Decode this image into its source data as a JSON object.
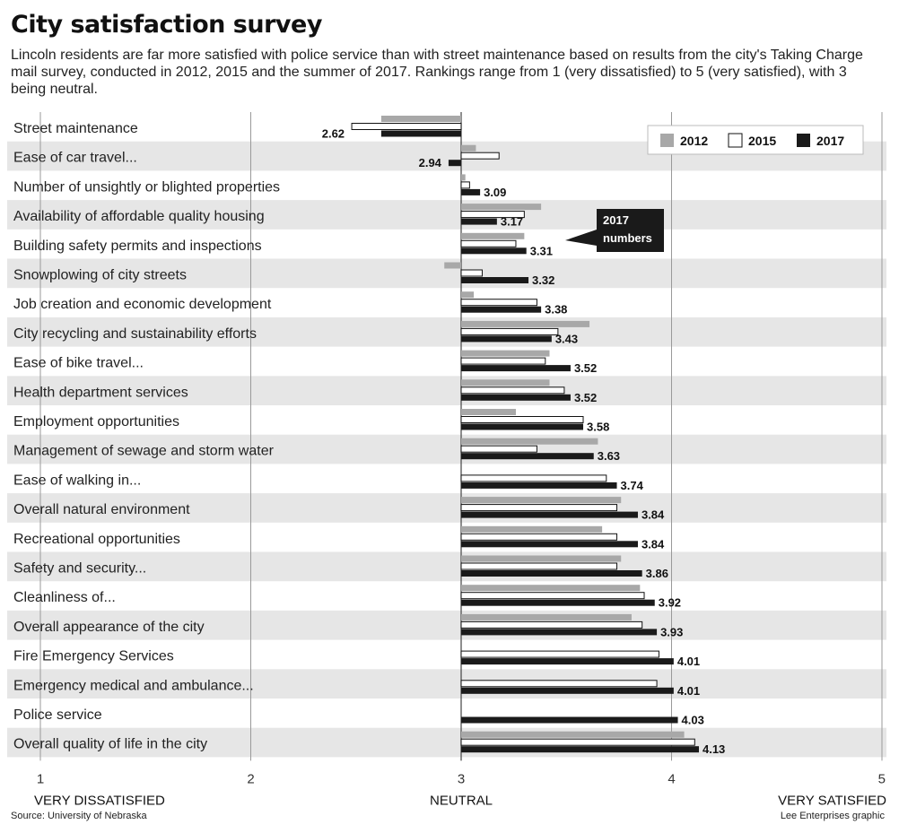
{
  "title": "City satisfaction survey",
  "subtitle": "Lincoln residents are far more satisfied with police service than with street maintenance based on results from the city's Taking Charge mail survey, conducted in 2012, 2015 and the summer of 2017. Rankings range from 1 (very dissatisfied) to 5 (very satisfied), with 3 being neutral.",
  "source": "Source: University of Nebraska",
  "credit": "Lee Enterprises graphic",
  "callout": {
    "line1": "2017",
    "line2": "numbers"
  },
  "colors": {
    "y2012": "#a8a8a8",
    "y2015": "#ffffff",
    "y2017": "#1a1a1a",
    "band": "#e6e6e6",
    "grid": "#999999"
  },
  "chart_data": {
    "type": "bar",
    "orientation": "horizontal",
    "xlim": [
      1,
      5
    ],
    "baseline": 3,
    "xticks": [
      1,
      2,
      3,
      4,
      5
    ],
    "axis_words": [
      {
        "value": 1,
        "text": "VERY DISSATISFIED"
      },
      {
        "value": 3,
        "text": "NEUTRAL"
      },
      {
        "value": 5,
        "text": "VERY SATISFIED"
      }
    ],
    "legend": [
      "2012",
      "2015",
      "2017"
    ],
    "categories": [
      "Street maintenance",
      "Ease of car travel...",
      "Number of unsightly or blighted properties",
      "Availability of affordable quality housing",
      "Building safety permits and inspections",
      "Snowplowing of city streets",
      "Job creation and economic development",
      "City recycling and sustainability efforts",
      "Ease of bike travel...",
      "Health department services",
      "Employment opportunities",
      "Management of sewage and storm water",
      "Ease of walking in...",
      "Overall natural environment",
      "Recreational opportunities",
      "Safety and security...",
      "Cleanliness of...",
      "Overall appearance of the city",
      "Fire Emergency Services",
      "Emergency medical and ambulance...",
      "Police service",
      "Overall quality of life in the city"
    ],
    "series": [
      {
        "name": "2012",
        "values": [
          2.62,
          3.07,
          3.02,
          3.38,
          3.3,
          2.92,
          3.06,
          3.61,
          3.42,
          3.42,
          3.26,
          3.65,
          null,
          3.76,
          3.67,
          3.76,
          3.85,
          3.81,
          null,
          null,
          null,
          4.06
        ]
      },
      {
        "name": "2015",
        "values": [
          2.48,
          3.18,
          3.04,
          3.3,
          3.26,
          3.1,
          3.36,
          3.46,
          3.4,
          3.49,
          3.58,
          3.36,
          3.69,
          3.74,
          3.74,
          3.74,
          3.87,
          3.86,
          3.94,
          3.93,
          null,
          4.11
        ]
      },
      {
        "name": "2017",
        "values": [
          2.62,
          2.94,
          3.09,
          3.17,
          3.31,
          3.32,
          3.38,
          3.43,
          3.52,
          3.52,
          3.58,
          3.63,
          3.74,
          3.84,
          3.84,
          3.86,
          3.92,
          3.93,
          4.01,
          4.01,
          4.03,
          4.13
        ]
      }
    ],
    "data_labels_2017": [
      "2.62",
      "2.94",
      "3.09",
      "3.17",
      "3.31",
      "3.32",
      "3.38",
      "3.43",
      "3.52",
      "3.52",
      "3.58",
      "3.63",
      "3.74",
      "3.84",
      "3.84",
      "3.86",
      "3.92",
      "3.93",
      "4.01",
      "4.01",
      "4.03",
      "4.13"
    ]
  }
}
